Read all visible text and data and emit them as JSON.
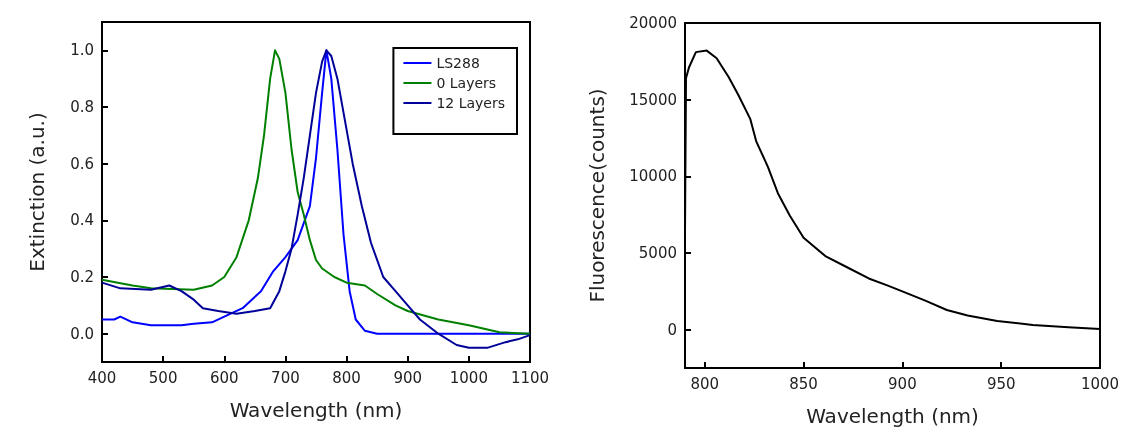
{
  "chart_data": [
    {
      "type": "line",
      "xlabel": "Wavelength (nm)",
      "ylabel": "Extinction (a.u.)",
      "xlim": [
        400,
        1100
      ],
      "xticks": [
        400,
        500,
        600,
        700,
        800,
        900,
        1000,
        1100
      ],
      "ylim": [
        -0.1,
        1.1
      ],
      "yticks": [
        {
          "value": 0,
          "label": "0.0"
        },
        {
          "value": 0.2,
          "label": "0.2"
        },
        {
          "value": 0.4,
          "label": "0.4"
        },
        {
          "value": 0.6,
          "label": "0.6"
        },
        {
          "value": 0.8,
          "label": "0.8"
        },
        {
          "value": 1,
          "label": "1.0"
        }
      ],
      "grid": false,
      "legend": "top right",
      "marker": "none",
      "line_style": "solid",
      "series": [
        {
          "name": "LS288",
          "color": "#0000ff",
          "x": [
            400,
            420,
            430,
            450,
            480,
            530,
            550,
            580,
            600,
            630,
            660,
            680,
            700,
            720,
            740,
            750,
            760,
            767,
            775,
            785,
            795,
            805,
            815,
            830,
            850,
            1100
          ],
          "values": [
            0.05,
            0.05,
            0.06,
            0.04,
            0.03,
            0.03,
            0.035,
            0.04,
            0.06,
            0.09,
            0.15,
            0.22,
            0.27,
            0.33,
            0.45,
            0.62,
            0.85,
            1.0,
            0.9,
            0.65,
            0.35,
            0.15,
            0.05,
            0.01,
            0.0,
            0.0
          ]
        },
        {
          "name": "0 Layers",
          "color": "#008000",
          "x": [
            400,
            450,
            480,
            550,
            580,
            600,
            620,
            640,
            655,
            665,
            675,
            683,
            690,
            700,
            710,
            720,
            730,
            740,
            750,
            760,
            780,
            800,
            830,
            850,
            880,
            900,
            950,
            1000,
            1050,
            1100
          ],
          "values": [
            0.19,
            0.17,
            0.16,
            0.155,
            0.17,
            0.2,
            0.27,
            0.4,
            0.55,
            0.7,
            0.9,
            1.0,
            0.97,
            0.85,
            0.65,
            0.5,
            0.42,
            0.33,
            0.26,
            0.23,
            0.2,
            0.18,
            0.17,
            0.14,
            0.1,
            0.08,
            0.05,
            0.03,
            0.005,
            0.0
          ]
        },
        {
          "name": "12 Layers",
          "color": "#000099",
          "x": [
            400,
            430,
            480,
            510,
            530,
            550,
            565,
            590,
            620,
            650,
            675,
            690,
            700,
            710,
            720,
            730,
            740,
            750,
            760,
            767,
            775,
            785,
            795,
            810,
            825,
            840,
            860,
            880,
            900,
            920,
            950,
            980,
            1000,
            1030,
            1060,
            1080,
            1100
          ],
          "values": [
            0.18,
            0.16,
            0.155,
            0.17,
            0.15,
            0.12,
            0.09,
            0.08,
            0.07,
            0.08,
            0.09,
            0.15,
            0.22,
            0.3,
            0.42,
            0.55,
            0.7,
            0.85,
            0.96,
            1.0,
            0.98,
            0.9,
            0.78,
            0.6,
            0.45,
            0.32,
            0.2,
            0.15,
            0.1,
            0.05,
            0.0,
            -0.04,
            -0.05,
            -0.05,
            -0.03,
            -0.02,
            -0.005
          ]
        }
      ]
    },
    {
      "type": "line",
      "xlabel": "Wavelength (nm)",
      "ylabel": "Fluorescence(counts)",
      "xlim": [
        790,
        1000
      ],
      "xticks": [
        800,
        850,
        900,
        950,
        1000
      ],
      "ylim": [
        -2500,
        20000
      ],
      "yticks": [
        0,
        5000,
        10000,
        15000,
        20000
      ],
      "grid": false,
      "legend": false,
      "marker": "none",
      "line_style": "solid",
      "series": [
        {
          "color": "#000000",
          "x": [
            790,
            790.5,
            792,
            795.5,
            801,
            806,
            812,
            817,
            823,
            826,
            832,
            837,
            843,
            850,
            861,
            872,
            883,
            893,
            902.5,
            911.6,
            922.5,
            933,
            948,
            966,
            984,
            1000
          ],
          "values": [
            6250,
            16400,
            17100,
            18100,
            18200,
            17700,
            16500,
            15300,
            13750,
            12300,
            10600,
            8900,
            7450,
            6000,
            4800,
            4070,
            3340,
            2860,
            2370,
            1890,
            1280,
            920,
            560,
            310,
            150,
            50
          ]
        }
      ]
    }
  ]
}
